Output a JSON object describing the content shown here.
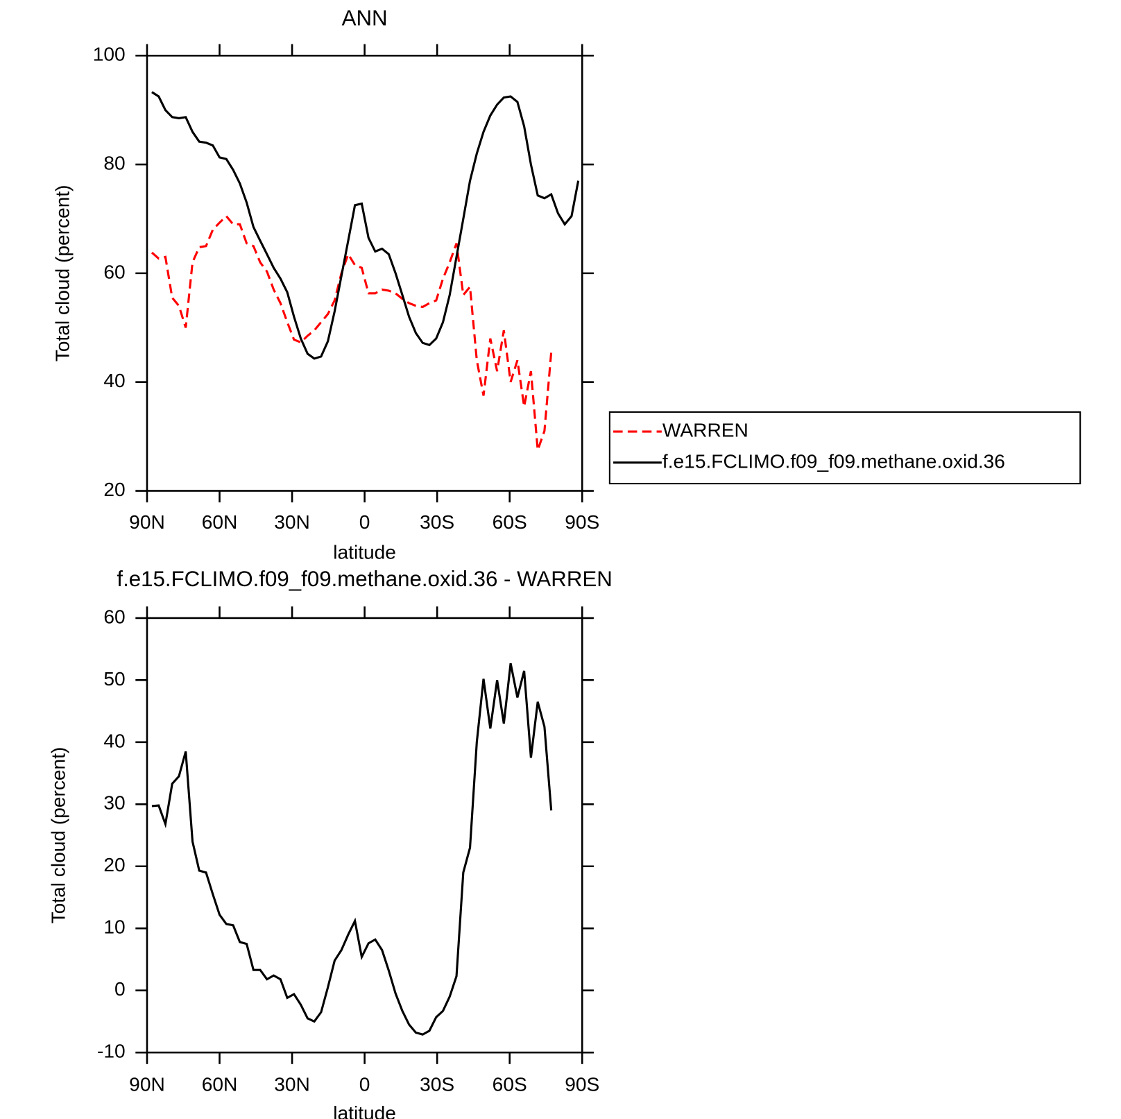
{
  "chart_data": [
    {
      "type": "line",
      "title": "ANN",
      "xlabel": "latitude",
      "ylabel": "Total cloud (percent)",
      "x": [
        88,
        85.2,
        82.4,
        79.6,
        76.8,
        74,
        71.2,
        68.4,
        65.6,
        62.8,
        60,
        57.2,
        54.4,
        51.6,
        48.8,
        46,
        43.2,
        40.4,
        37.6,
        34.8,
        32,
        29.2,
        26.4,
        23.6,
        20.8,
        18,
        15.2,
        12.4,
        9.6,
        6.8,
        4,
        1.2,
        -1.6,
        -4.4,
        -7.2,
        -10,
        -12.8,
        -15.6,
        -18.4,
        -21.2,
        -24,
        -26.8,
        -29.6,
        -32.4,
        -35.2,
        -38,
        -40.8,
        -43.6,
        -46.4,
        -49.2,
        -52,
        -54.8,
        -57.6,
        -60.4,
        -63.2,
        -66,
        -68.8,
        -71.6,
        -74.4,
        -77.2,
        -80,
        -82.8,
        -85.6,
        -88.4
      ],
      "series": [
        {
          "name": "WARREN",
          "color": "#ff0000",
          "dash": "dashed",
          "values": [
            63.8,
            62.7,
            63,
            55.5,
            54,
            50,
            62,
            64.8,
            65,
            68,
            69.3,
            70.5,
            69,
            69,
            65.5,
            65,
            62,
            60.3,
            57,
            54.5,
            51,
            47.8,
            47.3,
            48.5,
            49.5,
            51,
            52.5,
            55,
            60,
            63.5,
            61.5,
            61,
            56.3,
            56.3,
            57,
            56.8,
            56.3,
            55.3,
            54.5,
            54,
            53.8,
            54.5,
            55,
            59,
            62,
            65.5,
            56,
            57.5,
            44,
            37.5,
            48,
            42,
            49.5,
            40,
            44,
            35.5,
            42,
            27.5,
            31,
            45.5,
            null,
            null,
            null,
            null
          ]
        },
        {
          "name": "f.e15.FCLIMO.f09_f09.methane.oxid.36",
          "color": "#000000",
          "dash": "solid",
          "values": [
            93.3,
            92.5,
            90,
            88.7,
            88.5,
            88.7,
            86,
            84.2,
            84,
            83.5,
            81.3,
            81,
            79,
            76.5,
            73,
            68.5,
            66,
            63.5,
            61,
            59,
            56.5,
            52,
            48,
            45.2,
            44.3,
            44.7,
            47.5,
            53,
            59.5,
            66,
            72.5,
            72.8,
            66.5,
            64,
            64.5,
            63.5,
            60,
            56,
            52,
            49,
            47.2,
            46.8,
            48,
            51,
            56,
            63,
            70,
            77,
            82,
            86,
            89,
            91,
            92.3,
            92.5,
            91.5,
            87,
            80,
            74.3,
            73.8,
            74.5,
            71,
            69,
            70.5,
            77
          ]
        }
      ],
      "xlim": [
        90,
        -90
      ],
      "xticks": [
        {
          "value": 90,
          "label": "90N"
        },
        {
          "value": 60,
          "label": "60N"
        },
        {
          "value": 30,
          "label": "30N"
        },
        0,
        {
          "value": -30,
          "label": "30S"
        },
        {
          "value": -60,
          "label": "60S"
        },
        {
          "value": -90,
          "label": "90S"
        }
      ],
      "ylim": [
        20,
        100
      ],
      "yticks": [
        20,
        40,
        60,
        80,
        100
      ],
      "legend": "right"
    },
    {
      "type": "line",
      "title": "f.e15.FCLIMO.f09_f09.methane.oxid.36 - WARREN",
      "xlabel": "latitude",
      "ylabel": "Total cloud (percent)",
      "x": [
        88,
        85.2,
        82.4,
        79.6,
        76.8,
        74,
        71.2,
        68.4,
        65.6,
        62.8,
        60,
        57.2,
        54.4,
        51.6,
        48.8,
        46,
        43.2,
        40.4,
        37.6,
        34.8,
        32,
        29.2,
        26.4,
        23.6,
        20.8,
        18,
        15.2,
        12.4,
        9.6,
        6.8,
        4,
        1.2,
        -1.6,
        -4.4,
        -7.2,
        -10,
        -12.8,
        -15.6,
        -18.4,
        -21.2,
        -24,
        -26.8,
        -29.6,
        -32.4,
        -35.2,
        -38,
        -40.8,
        -43.6,
        -46.4,
        -49.2,
        -52,
        -54.8,
        -57.6,
        -60.4,
        -63.2,
        -66,
        -68.8,
        -71.6,
        -74.4,
        -77.2,
        -80,
        -82.8,
        -85.6,
        -88.4
      ],
      "color": "#000000",
      "values": [
        29.7,
        29.8,
        26.8,
        33.3,
        34.5,
        38.5,
        24,
        19.3,
        19,
        15.5,
        12.2,
        10.7,
        10.5,
        7.8,
        7.5,
        3.3,
        3.3,
        1.8,
        2.4,
        1.8,
        -1.2,
        -0.6,
        -2.3,
        -4.5,
        -5,
        -3.5,
        0.5,
        4.8,
        6.5,
        9,
        11.2,
        5.4,
        7.6,
        8.2,
        6.5,
        3.2,
        -0.5,
        -3.3,
        -5.5,
        -6.8,
        -7.1,
        -6.5,
        -4.3,
        -3.3,
        -1,
        2.3,
        19,
        23,
        40,
        50.2,
        42.2,
        50,
        43,
        52.7,
        47.2,
        51.5,
        37.5,
        46.5,
        42.5,
        29,
        null,
        null,
        null,
        null
      ],
      "xlim": [
        90,
        -90
      ],
      "xticks": [
        {
          "value": 90,
          "label": "90N"
        },
        {
          "value": 60,
          "label": "60N"
        },
        {
          "value": 30,
          "label": "30N"
        },
        0,
        {
          "value": -30,
          "label": "30S"
        },
        {
          "value": -60,
          "label": "60S"
        },
        {
          "value": -90,
          "label": "90S"
        }
      ],
      "ylim": [
        -10,
        60
      ],
      "yticks": [
        -10,
        0,
        10,
        20,
        30,
        40,
        50,
        60
      ]
    }
  ]
}
